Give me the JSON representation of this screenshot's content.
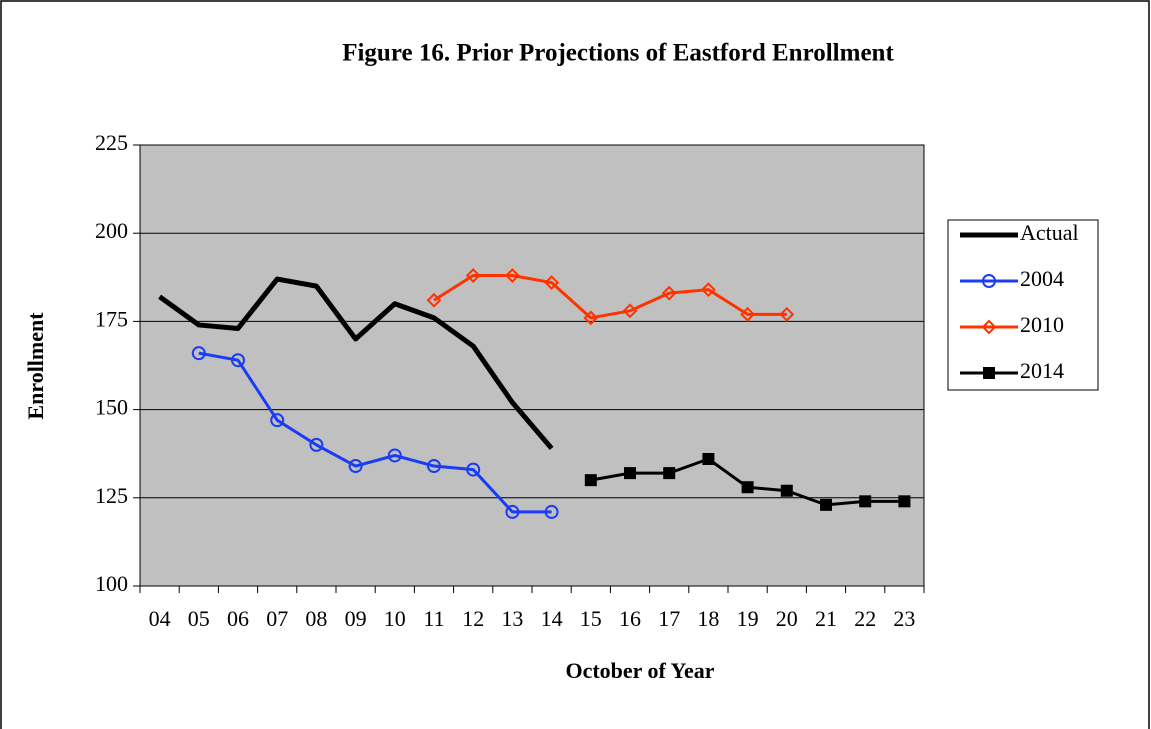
{
  "chart_data": {
    "type": "line",
    "title": "Figure 16. Prior Projections of Eastford Enrollment",
    "xlabel": "October of Year",
    "ylabel": "Enrollment",
    "categories": [
      "04",
      "05",
      "06",
      "07",
      "08",
      "09",
      "10",
      "11",
      "12",
      "13",
      "14",
      "15",
      "16",
      "17",
      "18",
      "19",
      "20",
      "21",
      "22",
      "23"
    ],
    "series": [
      {
        "name": "Actual",
        "color": "#000000",
        "marker": null,
        "values": [
          182,
          174,
          173,
          187,
          185,
          170,
          180,
          176,
          168,
          152,
          139,
          null,
          null,
          null,
          null,
          null,
          null,
          null,
          null,
          null
        ]
      },
      {
        "name": "2004",
        "color": "#1a3cf5",
        "marker": "circle",
        "values": [
          null,
          166,
          164,
          147,
          140,
          134,
          137,
          134,
          133,
          121,
          121,
          null,
          null,
          null,
          null,
          null,
          null,
          null,
          null,
          null
        ]
      },
      {
        "name": "2010",
        "color": "#ff3300",
        "marker": "diamond",
        "values": [
          null,
          null,
          null,
          null,
          null,
          null,
          null,
          181,
          188,
          188,
          186,
          176,
          178,
          183,
          184,
          177,
          177,
          null,
          null,
          null
        ]
      },
      {
        "name": "2014",
        "color": "#000000",
        "marker": "square",
        "values": [
          null,
          null,
          null,
          null,
          null,
          null,
          null,
          null,
          null,
          null,
          null,
          130,
          132,
          132,
          136,
          128,
          127,
          123,
          124,
          124
        ]
      }
    ],
    "ylim": [
      100,
      225
    ],
    "yticks": [
      100,
      125,
      150,
      175,
      200,
      225
    ],
    "grid": true,
    "legend": "right"
  }
}
